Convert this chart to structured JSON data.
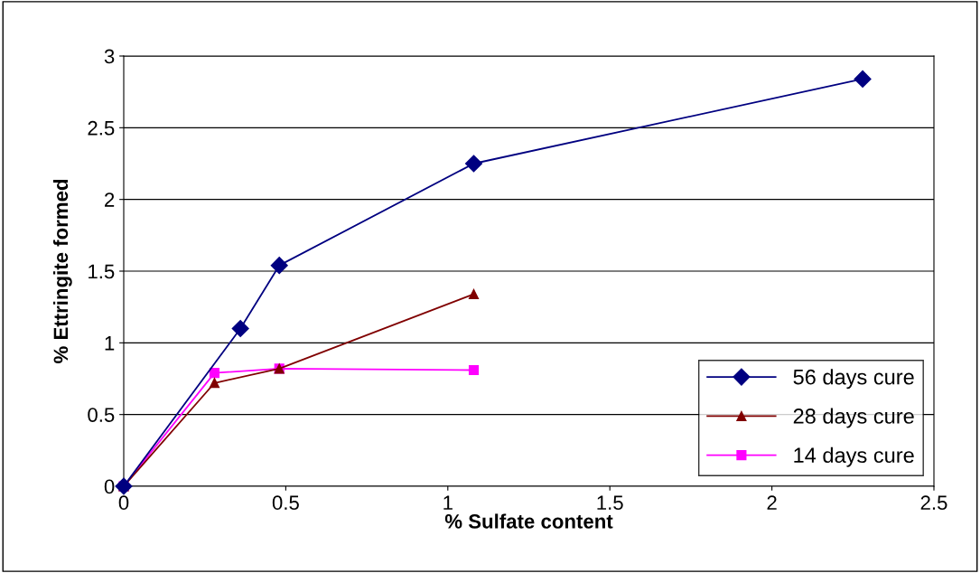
{
  "chart_data": {
    "type": "line",
    "xlabel": "% Sulfate content",
    "ylabel": "% Ettringite formed",
    "series": [
      {
        "name": "56 days cure",
        "color": "#000080",
        "marker": "diamond",
        "x": [
          0,
          0.36,
          0.48,
          1.08,
          2.28
        ],
        "values": [
          0,
          1.1,
          1.54,
          2.25,
          2.84
        ]
      },
      {
        "name": "28 days cure",
        "color": "#800000",
        "marker": "triangle",
        "x": [
          0,
          0.28,
          0.48,
          1.08
        ],
        "values": [
          0,
          0.72,
          0.82,
          1.34
        ]
      },
      {
        "name": "14 days cure",
        "color": "#ff00ff",
        "marker": "square",
        "x": [
          0,
          0.28,
          0.48,
          1.08
        ],
        "values": [
          0,
          0.79,
          0.82,
          0.81
        ]
      }
    ],
    "xlim": [
      0,
      2.5
    ],
    "xticks": [
      0,
      0.5,
      1,
      1.5,
      2,
      2.5
    ],
    "ylim": [
      0,
      3
    ],
    "yticks": [
      0,
      0.5,
      1,
      1.5,
      2,
      2.5,
      3
    ],
    "grid": "y",
    "legend": "bottom right",
    "line_style": "solid"
  }
}
